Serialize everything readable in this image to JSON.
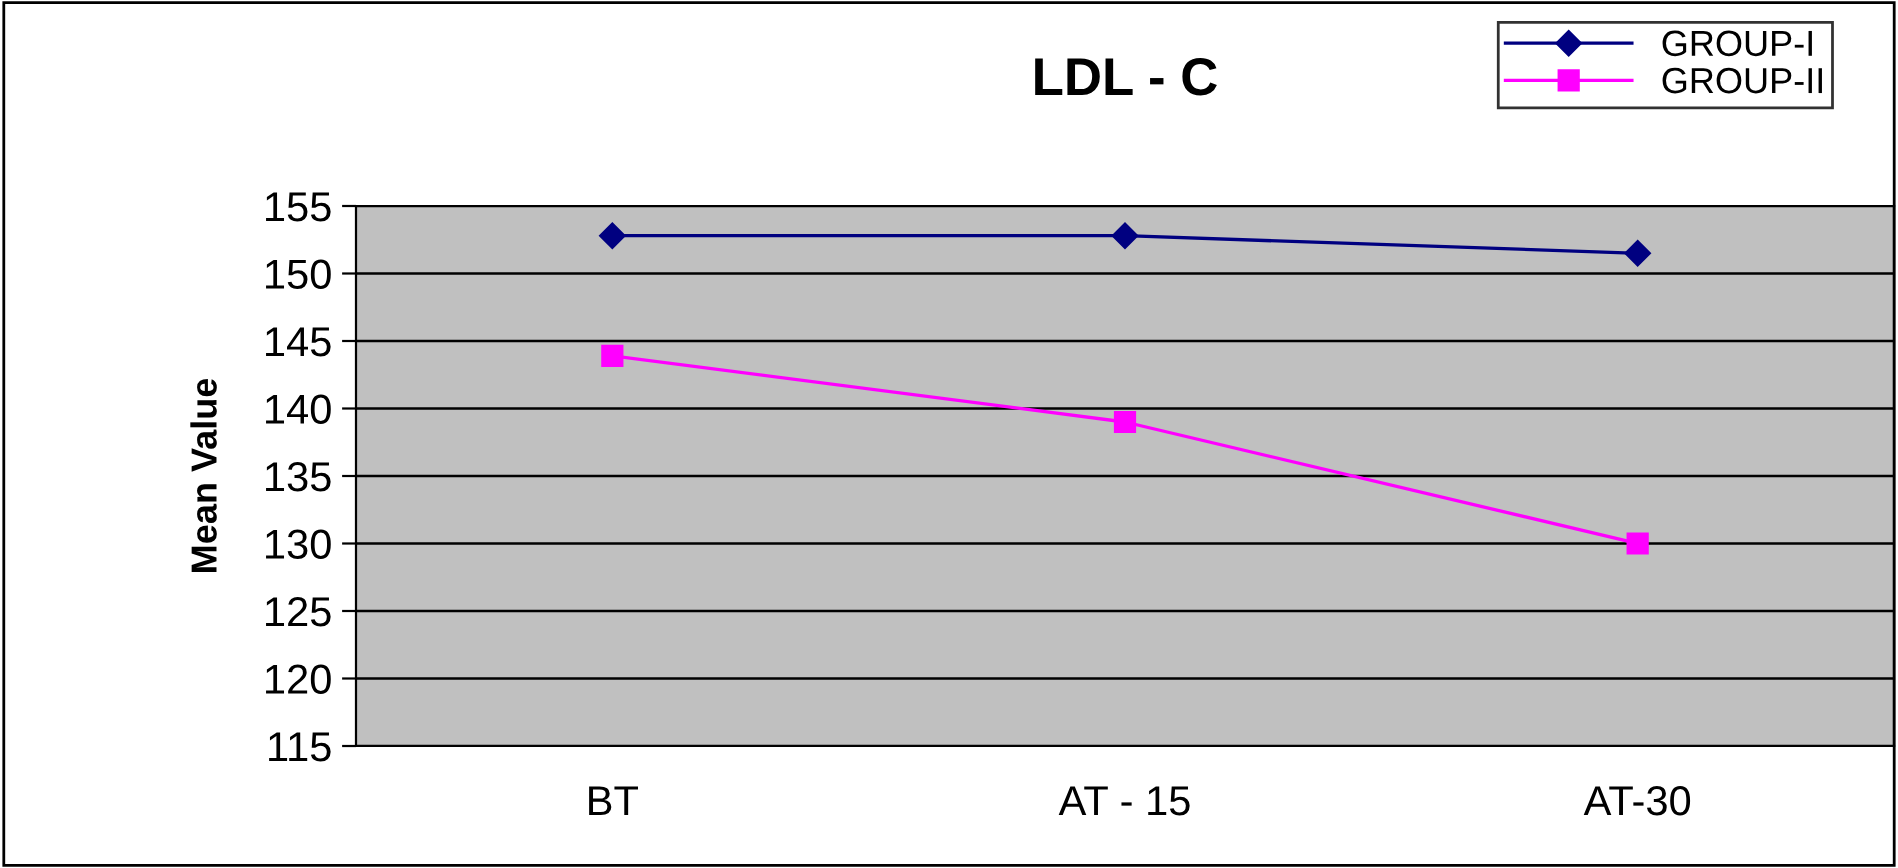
{
  "chart_data": {
    "type": "line",
    "title": "LDL - C",
    "ylabel": "Mean Value",
    "categories": [
      "BT",
      "AT - 15",
      "AT-30"
    ],
    "series": [
      {
        "name": "GROUP-I",
        "color": "#000080",
        "marker": "diamond",
        "values": [
          152.8,
          152.8,
          151.5
        ]
      },
      {
        "name": "GROUP-II",
        "color": "#ff00ff",
        "marker": "square",
        "values": [
          143.9,
          139.0,
          130.0
        ]
      }
    ],
    "ylim": [
      115,
      155
    ],
    "yticks": [
      115,
      120,
      125,
      130,
      135,
      140,
      145,
      150,
      155
    ],
    "grid": "y",
    "legend": "top right",
    "line_style": "solid"
  }
}
